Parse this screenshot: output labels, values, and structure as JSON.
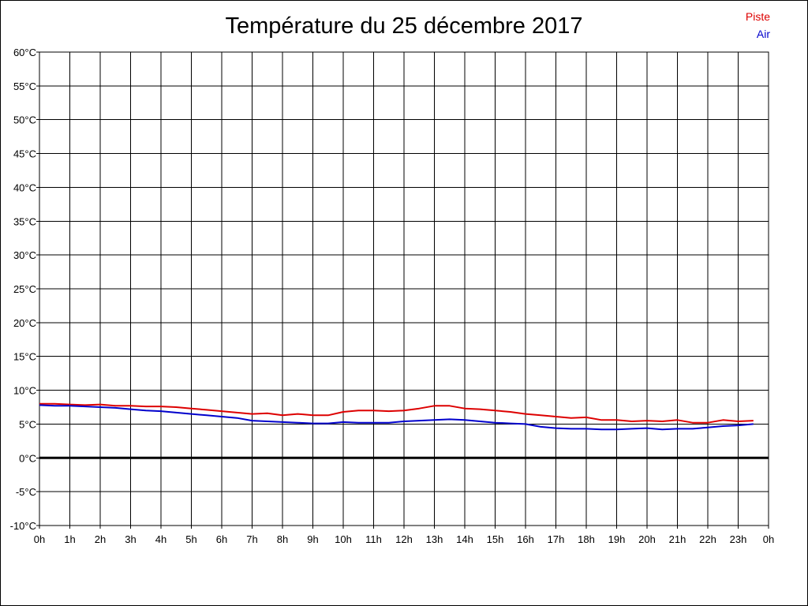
{
  "chart_data": {
    "type": "line",
    "title": "Température du 25 décembre 2017",
    "xlabel": "",
    "ylabel": "",
    "x_tick_labels": [
      "0h",
      "1h",
      "2h",
      "3h",
      "4h",
      "5h",
      "6h",
      "7h",
      "8h",
      "9h",
      "10h",
      "11h",
      "12h",
      "13h",
      "14h",
      "15h",
      "16h",
      "17h",
      "18h",
      "19h",
      "20h",
      "21h",
      "22h",
      "23h",
      "0h"
    ],
    "y_tick_labels": [
      "-10°C",
      "-5°C",
      "0°C",
      "5°C",
      "10°C",
      "15°C",
      "20°C",
      "25°C",
      "30°C",
      "35°C",
      "40°C",
      "45°C",
      "50°C",
      "55°C",
      "60°C"
    ],
    "xlim": [
      0,
      24
    ],
    "ylim": [
      -10,
      60
    ],
    "grid": true,
    "legend_position": "top-right",
    "zero_line": true,
    "series": [
      {
        "name": "Piste",
        "color": "#dd0000",
        "x": [
          0,
          0.5,
          1,
          1.5,
          2,
          2.5,
          3,
          3.5,
          4,
          4.5,
          5,
          5.5,
          6,
          6.5,
          7,
          7.5,
          8,
          8.5,
          9,
          9.5,
          10,
          10.5,
          11,
          11.5,
          12,
          12.5,
          13,
          13.5,
          14,
          14.5,
          15,
          15.5,
          16,
          16.5,
          17,
          17.5,
          18,
          18.5,
          19,
          19.5,
          20,
          20.5,
          21,
          21.5,
          22,
          22.5,
          23,
          23.5
        ],
        "values": [
          8.0,
          8.0,
          7.9,
          7.8,
          7.9,
          7.7,
          7.7,
          7.6,
          7.6,
          7.5,
          7.3,
          7.1,
          6.9,
          6.7,
          6.5,
          6.6,
          6.3,
          6.5,
          6.3,
          6.3,
          6.8,
          7.0,
          7.0,
          6.9,
          7.0,
          7.3,
          7.7,
          7.7,
          7.3,
          7.2,
          7.0,
          6.8,
          6.5,
          6.3,
          6.1,
          5.9,
          6.0,
          5.6,
          5.6,
          5.4,
          5.5,
          5.4,
          5.6,
          5.2,
          5.2,
          5.6,
          5.4,
          5.5
        ]
      },
      {
        "name": "Air",
        "color": "#0000cc",
        "x": [
          0,
          0.5,
          1,
          1.5,
          2,
          2.5,
          3,
          3.5,
          4,
          4.5,
          5,
          5.5,
          6,
          6.5,
          7,
          7.5,
          8,
          8.5,
          9,
          9.5,
          10,
          10.5,
          11,
          11.5,
          12,
          12.5,
          13,
          13.5,
          14,
          14.5,
          15,
          15.5,
          16,
          16.5,
          17,
          17.5,
          18,
          18.5,
          19,
          19.5,
          20,
          20.5,
          21,
          21.5,
          22,
          22.5,
          23,
          23.5
        ],
        "values": [
          7.8,
          7.7,
          7.7,
          7.6,
          7.5,
          7.4,
          7.2,
          7.0,
          6.9,
          6.7,
          6.5,
          6.3,
          6.1,
          5.9,
          5.5,
          5.4,
          5.3,
          5.2,
          5.1,
          5.1,
          5.3,
          5.2,
          5.2,
          5.2,
          5.4,
          5.5,
          5.6,
          5.7,
          5.6,
          5.4,
          5.2,
          5.1,
          5.0,
          4.6,
          4.4,
          4.3,
          4.3,
          4.2,
          4.2,
          4.3,
          4.4,
          4.2,
          4.3,
          4.3,
          4.5,
          4.7,
          4.8,
          5.0
        ]
      }
    ]
  }
}
